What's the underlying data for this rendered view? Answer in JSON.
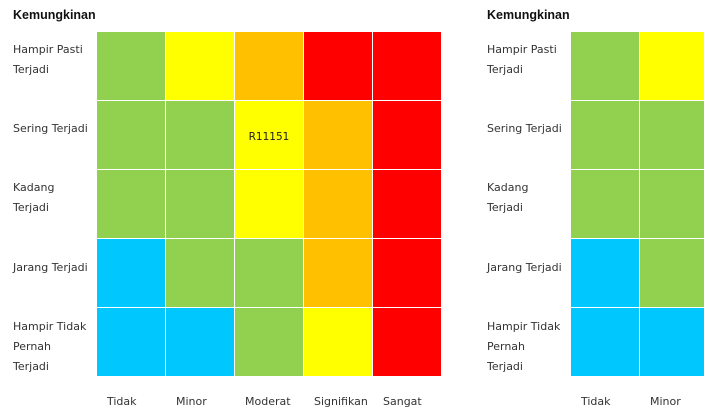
{
  "colors": {
    "green": "#92d050",
    "yellow": "#ffff00",
    "orange": "#ffc000",
    "red": "#ff0000",
    "blue": "#00c8ff"
  },
  "left_matrix": {
    "title": "Kemungkinan",
    "rows": [
      {
        "label": "Hampir Pasti\nTerjadi",
        "cells": [
          {
            "color": "green",
            "text": ""
          },
          {
            "color": "yellow",
            "text": ""
          },
          {
            "color": "orange",
            "text": ""
          },
          {
            "color": "red",
            "text": ""
          },
          {
            "color": "red",
            "text": ""
          }
        ]
      },
      {
        "label": "Sering Terjadi",
        "cells": [
          {
            "color": "green",
            "text": ""
          },
          {
            "color": "green",
            "text": ""
          },
          {
            "color": "yellow",
            "text": "R11151"
          },
          {
            "color": "orange",
            "text": ""
          },
          {
            "color": "red",
            "text": ""
          }
        ]
      },
      {
        "label": "Kadang\nTerjadi",
        "cells": [
          {
            "color": "green",
            "text": ""
          },
          {
            "color": "green",
            "text": ""
          },
          {
            "color": "yellow",
            "text": ""
          },
          {
            "color": "orange",
            "text": ""
          },
          {
            "color": "red",
            "text": ""
          }
        ]
      },
      {
        "label": "Jarang Terjadi",
        "cells": [
          {
            "color": "blue",
            "text": ""
          },
          {
            "color": "green",
            "text": ""
          },
          {
            "color": "green",
            "text": ""
          },
          {
            "color": "orange",
            "text": ""
          },
          {
            "color": "red",
            "text": ""
          }
        ]
      },
      {
        "label": "Hampir Tidak\nPernah\nTerjadi",
        "cells": [
          {
            "color": "blue",
            "text": ""
          },
          {
            "color": "blue",
            "text": ""
          },
          {
            "color": "green",
            "text": ""
          },
          {
            "color": "yellow",
            "text": ""
          },
          {
            "color": "red",
            "text": ""
          }
        ]
      }
    ],
    "columns": [
      "Tidak",
      "Minor",
      "Moderat",
      "Signifikan",
      "Sangat"
    ]
  },
  "right_matrix": {
    "title": "Kemungkinan",
    "rows": [
      {
        "label": "Hampir Pasti\nTerjadi",
        "cells": [
          {
            "color": "green",
            "text": ""
          },
          {
            "color": "yellow",
            "text": ""
          }
        ]
      },
      {
        "label": "Sering Terjadi",
        "cells": [
          {
            "color": "green",
            "text": ""
          },
          {
            "color": "green",
            "text": ""
          }
        ]
      },
      {
        "label": "Kadang\nTerjadi",
        "cells": [
          {
            "color": "green",
            "text": ""
          },
          {
            "color": "green",
            "text": ""
          }
        ]
      },
      {
        "label": "Jarang Terjadi",
        "cells": [
          {
            "color": "blue",
            "text": ""
          },
          {
            "color": "green",
            "text": ""
          }
        ]
      },
      {
        "label": "Hampir Tidak\nPernah\nTerjadi",
        "cells": [
          {
            "color": "blue",
            "text": ""
          },
          {
            "color": "blue",
            "text": ""
          }
        ]
      }
    ],
    "columns": [
      "Tidak",
      "Minor"
    ]
  }
}
